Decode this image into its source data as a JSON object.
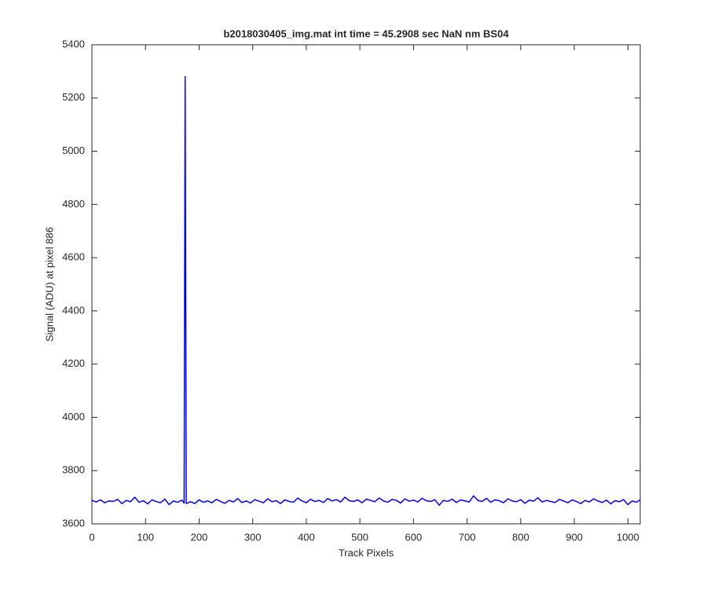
{
  "chart_data": {
    "type": "line",
    "title": "b2018030405_img.mat int time = 45.2908 sec  NaN nm BS04",
    "x_label": "Track Pixels",
    "y_label": "Signal (ADU) at pixel 886",
    "color": "#0000ff",
    "x": [
      0,
      8,
      16,
      24,
      32,
      40,
      48,
      56,
      64,
      72,
      80,
      88,
      96,
      104,
      112,
      120,
      128,
      136,
      144,
      152,
      160,
      168,
      172,
      174,
      176,
      184,
      192,
      200,
      208,
      216,
      224,
      232,
      240,
      248,
      256,
      264,
      272,
      280,
      288,
      296,
      304,
      312,
      320,
      328,
      336,
      344,
      352,
      360,
      368,
      376,
      384,
      392,
      400,
      408,
      416,
      424,
      432,
      440,
      448,
      456,
      464,
      472,
      480,
      488,
      496,
      504,
      512,
      520,
      528,
      536,
      544,
      552,
      560,
      568,
      576,
      584,
      592,
      600,
      608,
      616,
      624,
      632,
      640,
      648,
      656,
      664,
      672,
      680,
      688,
      696,
      704,
      712,
      720,
      728,
      736,
      744,
      752,
      760,
      768,
      776,
      784,
      792,
      800,
      808,
      816,
      824,
      832,
      840,
      848,
      856,
      864,
      872,
      880,
      888,
      896,
      904,
      912,
      920,
      928,
      936,
      944,
      952,
      960,
      968,
      976,
      984,
      992,
      1000,
      1008,
      1016,
      1023
    ],
    "values": [
      3688,
      3682,
      3690,
      3679,
      3686,
      3684,
      3692,
      3676,
      3688,
      3683,
      3700,
      3681,
      3687,
      3675,
      3690,
      3684,
      3679,
      3693,
      3672,
      3686,
      3681,
      3689,
      3678,
      5280,
      3676,
      3683,
      3676,
      3690,
      3681,
      3686,
      3679,
      3692,
      3684,
      3677,
      3688,
      3682,
      3695,
      3680,
      3686,
      3678,
      3691,
      3685,
      3679,
      3694,
      3683,
      3687,
      3676,
      3690,
      3684,
      3681,
      3697,
      3686,
      3679,
      3692,
      3684,
      3688,
      3680,
      3695,
      3686,
      3691,
      3682,
      3700,
      3687,
      3684,
      3690,
      3679,
      3693,
      3688,
      3683,
      3697,
      3686,
      3681,
      3692,
      3688,
      3678,
      3694,
      3685,
      3689,
      3682,
      3696,
      3687,
      3684,
      3691,
      3670,
      3688,
      3684,
      3693,
      3680,
      3690,
      3686,
      3682,
      3705,
      3688,
      3684,
      3696,
      3681,
      3690,
      3687,
      3679,
      3694,
      3686,
      3683,
      3691,
      3677,
      3689,
      3685,
      3698,
      3682,
      3688,
      3684,
      3680,
      3692,
      3686,
      3679,
      3690,
      3684,
      3676,
      3688,
      3682,
      3694,
      3686,
      3680,
      3689,
      3675,
      3687,
      3683,
      3691,
      3672,
      3686,
      3681,
      3690
    ],
    "xlim": [
      0,
      1023
    ],
    "xticks": [
      0,
      100,
      200,
      300,
      400,
      500,
      600,
      700,
      800,
      900,
      1000
    ],
    "ylim": [
      3600,
      5400
    ],
    "yticks": [
      3600,
      3800,
      4000,
      4200,
      4400,
      4600,
      4800,
      5000,
      5200,
      5400
    ],
    "grid": false
  }
}
